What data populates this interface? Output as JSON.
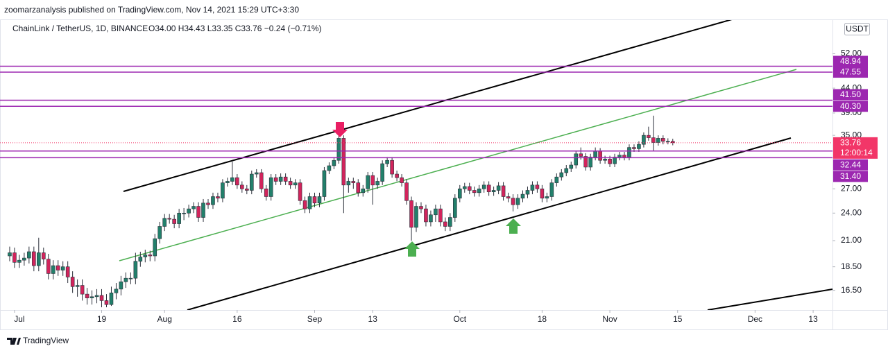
{
  "chart_data": {
    "type": "candlestick",
    "published": "zoomarzanalysis published on TradingView.com, Nov 14, 2021 15:29 UTC+3:30",
    "title": "ChainLink / TetherUS, 1D, BINANCE",
    "legend_values": "O34.00 H34.43 L33.35 C33.76 −0.24 (−0.71%)",
    "currency": "USDT",
    "countdown": "12:00:14",
    "brand": "TradingView",
    "log_scale": true,
    "grid": false,
    "up_color": "#22806b",
    "down_color": "#d2245c",
    "level_color": "#9c27b0",
    "price_color": "#f23668",
    "xlim": [
      "2021-06-28",
      "2021-12-17"
    ],
    "ylim": [
      15,
      61
    ],
    "xticks": [
      {
        "value": "2021-07-01",
        "label": "Jul"
      },
      {
        "value": "2021-07-19",
        "label": "19"
      },
      {
        "value": "2021-08-01",
        "label": "Aug"
      },
      {
        "value": "2021-08-16",
        "label": "16"
      },
      {
        "value": "2021-09-01",
        "label": "Sep"
      },
      {
        "value": "2021-09-13",
        "label": "13"
      },
      {
        "value": "2021-10-01",
        "label": "Oct"
      },
      {
        "value": "2021-10-18",
        "label": "18"
      },
      {
        "value": "2021-11-01",
        "label": "Nov"
      },
      {
        "value": "2021-11-15",
        "label": "15"
      },
      {
        "value": "2021-12-01",
        "label": "Dec"
      },
      {
        "value": "2021-12-13",
        "label": "13"
      }
    ],
    "yticks": [
      {
        "value": 16.5,
        "label": "16.50"
      },
      {
        "value": 18.5,
        "label": "18.50"
      },
      {
        "value": 21,
        "label": "21.00"
      },
      {
        "value": 24,
        "label": "24.00"
      },
      {
        "value": 27,
        "label": "27.00"
      },
      {
        "value": 35,
        "label": "35.00"
      },
      {
        "value": 39,
        "label": "39.00"
      },
      {
        "value": 44,
        "label": "44.00"
      },
      {
        "value": 52,
        "label": "52.00"
      }
    ],
    "levels": [
      48.94,
      47.55,
      {
        "value": 41.5,
        "label": "41.50"
      },
      {
        "value": 40.3,
        "label": "40.30"
      },
      32.44,
      {
        "value": 31.4,
        "label": "31.40"
      }
    ],
    "last_price": 33.76,
    "x": [
      "2021-06-30",
      "2021-07-01",
      "2021-07-02",
      "2021-07-03",
      "2021-07-04",
      "2021-07-05",
      "2021-07-06",
      "2021-07-07",
      "2021-07-08",
      "2021-07-09",
      "2021-07-10",
      "2021-07-11",
      "2021-07-12",
      "2021-07-13",
      "2021-07-14",
      "2021-07-15",
      "2021-07-16",
      "2021-07-17",
      "2021-07-18",
      "2021-07-19",
      "2021-07-20",
      "2021-07-21",
      "2021-07-22",
      "2021-07-23",
      "2021-07-24",
      "2021-07-25",
      "2021-07-26",
      "2021-07-27",
      "2021-07-28",
      "2021-07-29",
      "2021-07-30",
      "2021-07-31",
      "2021-08-01",
      "2021-08-02",
      "2021-08-03",
      "2021-08-04",
      "2021-08-05",
      "2021-08-06",
      "2021-08-07",
      "2021-08-08",
      "2021-08-09",
      "2021-08-10",
      "2021-08-11",
      "2021-08-12",
      "2021-08-13",
      "2021-08-14",
      "2021-08-15",
      "2021-08-16",
      "2021-08-17",
      "2021-08-18",
      "2021-08-19",
      "2021-08-20",
      "2021-08-21",
      "2021-08-22",
      "2021-08-23",
      "2021-08-24",
      "2021-08-25",
      "2021-08-26",
      "2021-08-27",
      "2021-08-28",
      "2021-08-29",
      "2021-08-30",
      "2021-08-31",
      "2021-09-01",
      "2021-09-02",
      "2021-09-03",
      "2021-09-04",
      "2021-09-05",
      "2021-09-06",
      "2021-09-07",
      "2021-09-08",
      "2021-09-09",
      "2021-09-10",
      "2021-09-11",
      "2021-09-12",
      "2021-09-13",
      "2021-09-14",
      "2021-09-15",
      "2021-09-16",
      "2021-09-17",
      "2021-09-18",
      "2021-09-19",
      "2021-09-20",
      "2021-09-21",
      "2021-09-22",
      "2021-09-23",
      "2021-09-24",
      "2021-09-25",
      "2021-09-26",
      "2021-09-27",
      "2021-09-28",
      "2021-09-29",
      "2021-09-30",
      "2021-10-01",
      "2021-10-02",
      "2021-10-03",
      "2021-10-04",
      "2021-10-05",
      "2021-10-06",
      "2021-10-07",
      "2021-10-08",
      "2021-10-09",
      "2021-10-10",
      "2021-10-11",
      "2021-10-12",
      "2021-10-13",
      "2021-10-14",
      "2021-10-15",
      "2021-10-16",
      "2021-10-17",
      "2021-10-18",
      "2021-10-19",
      "2021-10-20",
      "2021-10-21",
      "2021-10-22",
      "2021-10-23",
      "2021-10-24",
      "2021-10-25",
      "2021-10-26",
      "2021-10-27",
      "2021-10-28",
      "2021-10-29",
      "2021-10-30",
      "2021-10-31",
      "2021-11-01",
      "2021-11-02",
      "2021-11-03",
      "2021-11-04",
      "2021-11-05",
      "2021-11-06",
      "2021-11-07",
      "2021-11-08",
      "2021-11-09",
      "2021-11-10",
      "2021-11-11",
      "2021-11-12",
      "2021-11-13",
      "2021-11-14"
    ],
    "ohlc": [
      [
        19.5,
        20.4,
        19.0,
        19.8
      ],
      [
        19.8,
        20.3,
        18.4,
        18.9
      ],
      [
        18.9,
        19.6,
        18.4,
        19.1
      ],
      [
        19.1,
        19.8,
        18.6,
        19.3
      ],
      [
        19.3,
        20.4,
        18.8,
        19.9
      ],
      [
        19.9,
        20.4,
        18.1,
        18.6
      ],
      [
        18.6,
        21.3,
        18.1,
        19.8
      ],
      [
        19.8,
        20.3,
        18.7,
        19.2
      ],
      [
        19.2,
        19.7,
        17.4,
        17.9
      ],
      [
        17.9,
        19.1,
        17.4,
        18.6
      ],
      [
        18.6,
        19.1,
        17.7,
        18.2
      ],
      [
        18.2,
        19.0,
        17.7,
        18.5
      ],
      [
        18.5,
        19.0,
        17.1,
        17.6
      ],
      [
        17.6,
        18.1,
        16.3,
        16.8
      ],
      [
        16.8,
        17.4,
        16.0,
        16.9
      ],
      [
        16.9,
        17.4,
        15.7,
        16.2
      ],
      [
        16.2,
        16.7,
        15.4,
        15.9
      ],
      [
        15.9,
        16.5,
        15.4,
        16.0
      ],
      [
        16.0,
        16.6,
        15.5,
        16.1
      ],
      [
        16.1,
        16.6,
        15.2,
        15.7
      ],
      [
        15.7,
        16.2,
        15.2,
        15.4
      ],
      [
        15.4,
        16.8,
        15.3,
        16.3
      ],
      [
        16.3,
        17.1,
        15.8,
        16.6
      ],
      [
        16.6,
        17.7,
        16.1,
        17.2
      ],
      [
        17.2,
        18.0,
        16.7,
        17.5
      ],
      [
        17.5,
        18.0,
        17.0,
        17.5
      ],
      [
        17.5,
        19.8,
        17.0,
        19.0
      ],
      [
        19.0,
        19.9,
        18.5,
        19.4
      ],
      [
        19.4,
        20.1,
        18.9,
        19.6
      ],
      [
        19.6,
        20.0,
        19.0,
        19.5
      ],
      [
        19.5,
        21.7,
        19.0,
        21.2
      ],
      [
        21.2,
        23.0,
        20.7,
        22.5
      ],
      [
        22.5,
        23.9,
        22.0,
        23.4
      ],
      [
        23.4,
        23.9,
        22.8,
        23.3
      ],
      [
        23.3,
        23.8,
        22.3,
        22.8
      ],
      [
        22.8,
        24.5,
        22.3,
        24.0
      ],
      [
        24.0,
        24.6,
        23.2,
        24.0
      ],
      [
        24.0,
        25.0,
        23.5,
        24.5
      ],
      [
        24.5,
        25.3,
        24.0,
        24.8
      ],
      [
        24.8,
        25.3,
        23.0,
        23.5
      ],
      [
        23.5,
        25.7,
        23.0,
        25.2
      ],
      [
        25.2,
        25.7,
        24.5,
        25.0
      ],
      [
        25.0,
        26.5,
        24.5,
        26.0
      ],
      [
        26.0,
        26.5,
        25.3,
        25.8
      ],
      [
        25.8,
        28.3,
        25.3,
        27.8
      ],
      [
        27.8,
        28.5,
        27.3,
        28.0
      ],
      [
        28.0,
        30.8,
        27.5,
        28.5
      ],
      [
        28.5,
        29.0,
        27.0,
        27.5
      ],
      [
        27.5,
        28.0,
        26.5,
        27.0
      ],
      [
        27.0,
        27.5,
        26.3,
        26.8
      ],
      [
        26.8,
        29.5,
        26.3,
        29.0
      ],
      [
        29.0,
        29.7,
        28.5,
        29.2
      ],
      [
        29.2,
        29.7,
        26.5,
        27.0
      ],
      [
        27.0,
        27.5,
        25.5,
        26.0
      ],
      [
        26.0,
        29.0,
        25.5,
        28.5
      ],
      [
        28.5,
        29.0,
        27.5,
        28.0
      ],
      [
        28.0,
        29.1,
        27.5,
        28.6
      ],
      [
        28.6,
        29.1,
        27.5,
        28.0
      ],
      [
        28.0,
        28.5,
        27.0,
        27.5
      ],
      [
        27.5,
        28.3,
        27.0,
        27.8
      ],
      [
        27.8,
        28.3,
        25.0,
        25.5
      ],
      [
        25.5,
        26.0,
        24.0,
        24.5
      ],
      [
        24.5,
        26.5,
        24.0,
        26.0
      ],
      [
        26.0,
        26.5,
        24.7,
        25.2
      ],
      [
        25.2,
        26.5,
        24.7,
        26.0
      ],
      [
        26.0,
        30.0,
        25.5,
        29.5
      ],
      [
        29.5,
        30.7,
        29.0,
        30.2
      ],
      [
        30.2,
        31.5,
        29.7,
        31.0
      ],
      [
        31.0,
        35.9,
        30.5,
        34.5
      ],
      [
        34.5,
        35.0,
        24.0,
        27.5
      ],
      [
        27.5,
        28.5,
        26.5,
        28.0
      ],
      [
        28.0,
        28.5,
        27.0,
        27.8
      ],
      [
        27.8,
        28.3,
        26.0,
        26.5
      ],
      [
        26.5,
        27.5,
        26.0,
        27.0
      ],
      [
        27.0,
        29.3,
        26.5,
        28.8
      ],
      [
        28.8,
        29.3,
        25.0,
        27.5
      ],
      [
        27.5,
        28.5,
        27.0,
        28.0
      ],
      [
        28.0,
        31.0,
        27.5,
        30.5
      ],
      [
        30.5,
        31.5,
        30.0,
        31.0
      ],
      [
        31.0,
        31.5,
        28.5,
        29.0
      ],
      [
        29.0,
        29.5,
        28.0,
        28.5
      ],
      [
        28.5,
        29.0,
        27.3,
        27.8
      ],
      [
        27.8,
        28.3,
        25.0,
        25.5
      ],
      [
        25.5,
        26.0,
        21.0,
        22.4
      ],
      [
        22.4,
        25.3,
        21.9,
        24.8
      ],
      [
        24.8,
        25.3,
        24.0,
        24.5
      ],
      [
        24.5,
        25.0,
        22.5,
        23.0
      ],
      [
        23.0,
        24.3,
        22.5,
        23.8
      ],
      [
        23.8,
        25.0,
        23.0,
        24.5
      ],
      [
        24.5,
        25.0,
        22.5,
        23.0
      ],
      [
        23.0,
        23.5,
        22.0,
        22.5
      ],
      [
        22.5,
        24.0,
        22.0,
        23.5
      ],
      [
        23.5,
        26.3,
        23.0,
        25.8
      ],
      [
        25.8,
        27.5,
        25.3,
        27.0
      ],
      [
        27.0,
        27.8,
        26.5,
        27.3
      ],
      [
        27.3,
        27.8,
        26.3,
        26.8
      ],
      [
        26.8,
        27.3,
        26.0,
        26.5
      ],
      [
        26.5,
        27.5,
        26.0,
        27.0
      ],
      [
        27.0,
        28.0,
        26.5,
        27.5
      ],
      [
        27.5,
        28.0,
        26.1,
        26.6
      ],
      [
        26.6,
        27.3,
        26.1,
        26.8
      ],
      [
        26.8,
        27.9,
        26.3,
        27.4
      ],
      [
        27.4,
        27.9,
        25.5,
        26.0
      ],
      [
        26.0,
        26.5,
        25.3,
        25.8
      ],
      [
        25.8,
        26.3,
        24.2,
        25.0
      ],
      [
        25.0,
        26.3,
        24.5,
        25.8
      ],
      [
        25.8,
        26.8,
        25.3,
        26.3
      ],
      [
        26.3,
        27.3,
        25.8,
        26.8
      ],
      [
        26.8,
        28.0,
        26.3,
        27.5
      ],
      [
        27.5,
        28.0,
        26.5,
        27.0
      ],
      [
        27.0,
        27.5,
        25.3,
        25.8
      ],
      [
        25.8,
        26.5,
        25.3,
        26.0
      ],
      [
        26.0,
        28.3,
        25.5,
        27.8
      ],
      [
        27.8,
        29.1,
        27.3,
        28.6
      ],
      [
        28.6,
        29.7,
        28.1,
        29.2
      ],
      [
        29.2,
        30.3,
        28.7,
        29.8
      ],
      [
        29.8,
        30.8,
        29.3,
        30.3
      ],
      [
        30.3,
        32.5,
        29.8,
        32.0
      ],
      [
        32.0,
        33.0,
        31.1,
        31.6
      ],
      [
        31.6,
        32.1,
        29.5,
        30.0
      ],
      [
        30.0,
        32.0,
        29.5,
        31.5
      ],
      [
        31.5,
        33.0,
        31.0,
        32.4
      ],
      [
        32.4,
        32.9,
        30.5,
        31.0
      ],
      [
        31.0,
        31.7,
        30.5,
        31.2
      ],
      [
        31.2,
        31.7,
        30.0,
        30.5
      ],
      [
        30.5,
        32.0,
        30.0,
        31.5
      ],
      [
        31.5,
        32.3,
        31.0,
        31.8
      ],
      [
        31.8,
        32.3,
        31.0,
        31.5
      ],
      [
        31.5,
        33.5,
        31.0,
        33.0
      ],
      [
        33.0,
        33.5,
        32.3,
        32.8
      ],
      [
        32.8,
        34.0,
        32.3,
        33.5
      ],
      [
        33.5,
        35.5,
        33.0,
        35.0
      ],
      [
        35.0,
        36.5,
        34.1,
        34.6
      ],
      [
        34.6,
        38.5,
        32.5,
        33.8
      ],
      [
        33.8,
        35.0,
        33.3,
        34.5
      ],
      [
        34.5,
        35.0,
        33.5,
        34.0
      ],
      [
        34.0,
        34.5,
        33.5,
        34.0
      ],
      [
        34.0,
        34.43,
        33.35,
        33.76
      ]
    ]
  }
}
